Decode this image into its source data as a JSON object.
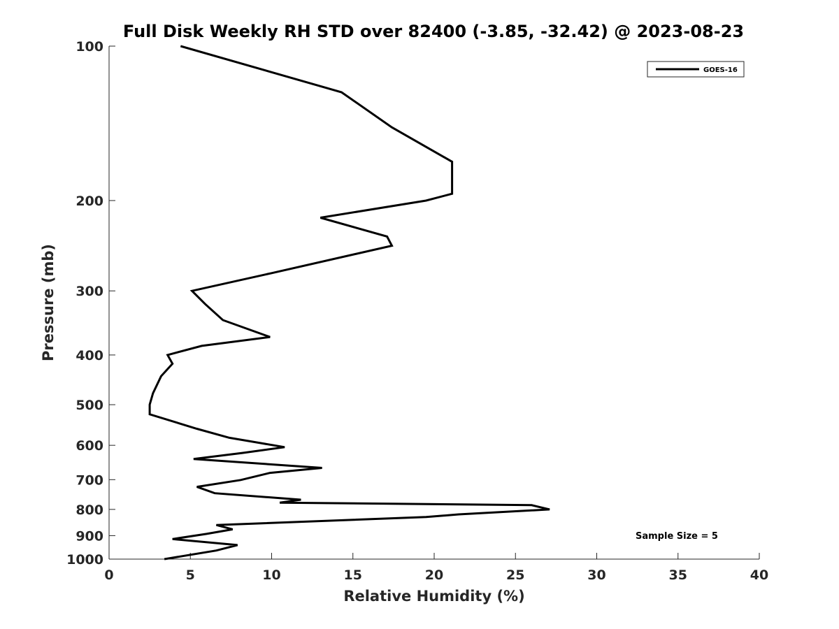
{
  "chart_data": {
    "type": "line",
    "title": "Full Disk Weekly RH STD over 82400 (-3.85, -32.42) @ 2023-08-23",
    "xlabel": "Relative Humidity (%)",
    "ylabel": "Pressure (mb)",
    "xlim": [
      0,
      40
    ],
    "ylim": [
      1000,
      100
    ],
    "y_scale": "log",
    "y_direction": "reversed",
    "x_ticks": [
      0,
      5,
      10,
      15,
      20,
      25,
      30,
      35,
      40
    ],
    "y_ticks": [
      100,
      200,
      300,
      400,
      500,
      600,
      700,
      800,
      900,
      1000
    ],
    "grid": false,
    "legend_position": "top-right",
    "series": [
      {
        "name": "GOES-16",
        "color": "#000000",
        "x": [
          4.4,
          14.3,
          17.4,
          21.1,
          21.1,
          19.5,
          13.0,
          17.1,
          17.4,
          10.0,
          5.1,
          5.9,
          7.0,
          9.9,
          5.7,
          3.6,
          3.9,
          3.2,
          2.7,
          2.5,
          2.5,
          5.4,
          7.4,
          10.8,
          8.2,
          5.2,
          13.1,
          9.9,
          8.1,
          5.4,
          6.5,
          11.8,
          10.5,
          26.0,
          27.1,
          21.5,
          19.5,
          6.6,
          7.6,
          6.0,
          3.9,
          7.9,
          6.6,
          3.4
        ],
        "y": [
          100,
          123,
          144,
          168,
          194,
          200,
          216,
          235,
          245,
          277,
          300,
          318,
          342,
          369,
          384,
          400,
          416,
          440,
          475,
          500,
          522,
          557,
          580,
          605,
          621,
          638,
          664,
          679,
          701,
          723,
          744,
          766,
          776,
          785,
          800,
          818,
          828,
          858,
          875,
          893,
          914,
          939,
          962,
          1000
        ]
      }
    ],
    "annotations": [
      "Sample Size = 5"
    ]
  }
}
